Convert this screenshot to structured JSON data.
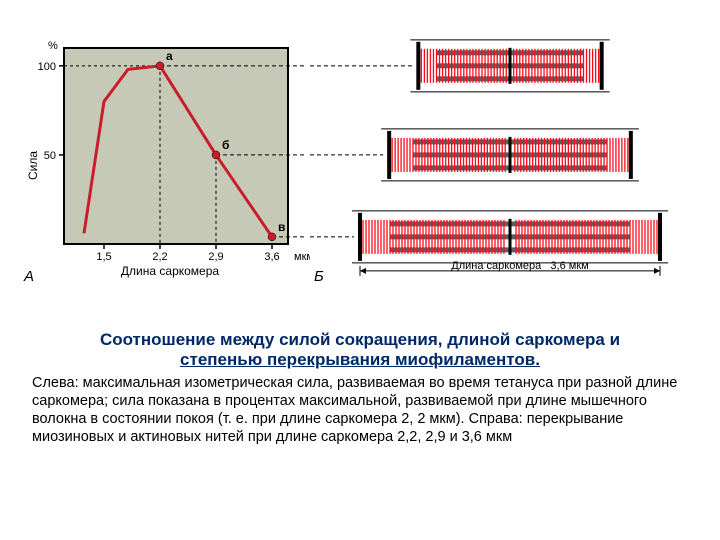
{
  "chart": {
    "type": "line",
    "y_label": "Сила",
    "y_unit": "%",
    "x_label": "Длина саркомера",
    "x_unit": "мкм",
    "panel_label": "А",
    "xlim": [
      1.0,
      3.8
    ],
    "ylim": [
      0,
      110
    ],
    "x_ticks": [
      1.5,
      2.2,
      2.9,
      3.6
    ],
    "x_tick_labels": [
      "1,5",
      "2,2",
      "2,9",
      "3,6"
    ],
    "y_ticks": [
      50,
      100
    ],
    "y_tick_labels": [
      "50",
      "100"
    ],
    "line_color": "#c81e2b",
    "line_width": 3,
    "background_color": "#c7c9b7",
    "border_color": "#000000",
    "data_points": [
      {
        "x": 1.25,
        "y": 6
      },
      {
        "x": 1.5,
        "y": 80
      },
      {
        "x": 1.8,
        "y": 98
      },
      {
        "x": 2.2,
        "y": 100
      },
      {
        "x": 2.9,
        "y": 50
      },
      {
        "x": 3.6,
        "y": 4
      }
    ],
    "markers": [
      {
        "x": 2.2,
        "y": 100,
        "label": "а",
        "color": "#c81e2b"
      },
      {
        "x": 2.9,
        "y": 50,
        "label": "б",
        "color": "#c81e2b"
      },
      {
        "x": 3.6,
        "y": 4,
        "label": "в",
        "color": "#c81e2b"
      }
    ],
    "marker_radius": 4
  },
  "diagram": {
    "panel_label": "Б",
    "z_line_color": "#000000",
    "thick_filament_color": "#5e5e5e",
    "thin_filament_color": "#fd0b1a",
    "sarcomeres": [
      {
        "length_um": 2.2,
        "overlap_ratio": 0.95,
        "label": ""
      },
      {
        "length_um": 2.9,
        "overlap_ratio": 0.55,
        "label": ""
      },
      {
        "length_um": 3.6,
        "overlap_ratio": 0.08,
        "label": "Длина саркомера  3,6 мкм"
      }
    ],
    "caption_prefix": "Длина саркомера",
    "caption_value": "3,6 мкм"
  },
  "title": {
    "line1": "Соотношение между силой сокращения, длиной саркомера и",
    "line2_u": "степенью перекрывания миофиламентов."
  },
  "description": "Слева: максимальная изометрическая сила, развиваемая во время тетануса при разной длине саркомера; сила показана в процентах максимальной, развиваемой при длине мышечного волокна в состоянии покоя (т. е. при длине саркомера 2, 2 мкм). Справа: перекрывание миозиновых и актиновых нитей при длине саркомера 2,2, 2,9 и 3,6 мкм"
}
